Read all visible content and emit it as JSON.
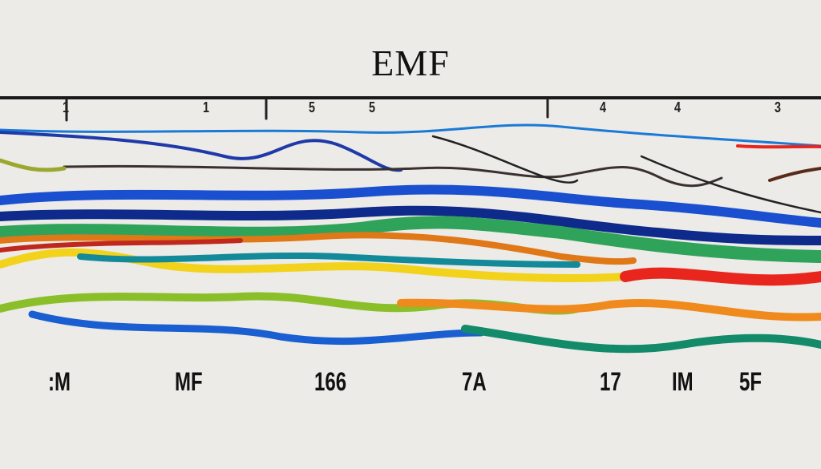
{
  "title": "EMF",
  "top_labels": [
    "1",
    "1",
    "5",
    "5",
    "4",
    "4",
    "3"
  ],
  "bottom_labels": [
    ":M",
    "MF",
    "166",
    "7A",
    "17",
    "IM",
    "5F"
  ],
  "colors": {
    "background": "#ecebe7",
    "blue": "#1a5fd1",
    "navy": "#0e2a8a",
    "green": "#2fa35a",
    "yellow": "#f2d21b",
    "orange": "#f08a1c",
    "red": "#e8261e",
    "teal": "#138a6a",
    "lime": "#8bbf2a",
    "black": "#2a2a2a"
  }
}
